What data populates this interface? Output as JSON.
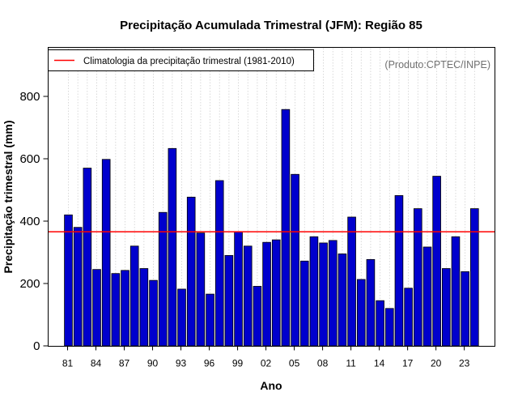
{
  "chart_data": {
    "type": "bar",
    "title": "Precipitação Acumulada Trimestral (JFM): Região 85",
    "xlabel": "Ano",
    "ylabel": "Precipitação trimestral (mm)",
    "ylim": [
      0,
      920
    ],
    "yticks": [
      0,
      200,
      400,
      600,
      800
    ],
    "xticks": [
      "81",
      "84",
      "87",
      "90",
      "93",
      "96",
      "99",
      "02",
      "05",
      "08",
      "11",
      "14",
      "17",
      "20",
      "23"
    ],
    "categories": [
      "1981",
      "1982",
      "1983",
      "1984",
      "1985",
      "1986",
      "1987",
      "1988",
      "1989",
      "1990",
      "1991",
      "1992",
      "1993",
      "1994",
      "1995",
      "1996",
      "1997",
      "1998",
      "1999",
      "2000",
      "2001",
      "2002",
      "2003",
      "2004",
      "2005",
      "2006",
      "2007",
      "2008",
      "2009",
      "2010",
      "2011",
      "2012",
      "2013",
      "2014",
      "2015",
      "2016",
      "2017",
      "2018",
      "2019",
      "2020",
      "2021",
      "2022",
      "2023",
      "2024"
    ],
    "values": [
      420,
      380,
      570,
      245,
      598,
      232,
      242,
      320,
      248,
      210,
      428,
      633,
      182,
      477,
      362,
      166,
      530,
      290,
      366,
      320,
      191,
      332,
      340,
      758,
      550,
      272,
      350,
      330,
      338,
      295,
      413,
      213,
      277,
      145,
      120,
      482,
      185,
      440,
      317,
      544,
      248,
      350,
      238,
      440
    ],
    "reference_line": {
      "value": 366,
      "label": "Climatologia da precipitação trimestral (1981-2010)",
      "color": "#ff0000"
    },
    "bar_color": "#0000cd",
    "grid": "vertical dotted",
    "legend_position": "top-left",
    "annotation": "(Produto:CPTEC/INPE)"
  }
}
